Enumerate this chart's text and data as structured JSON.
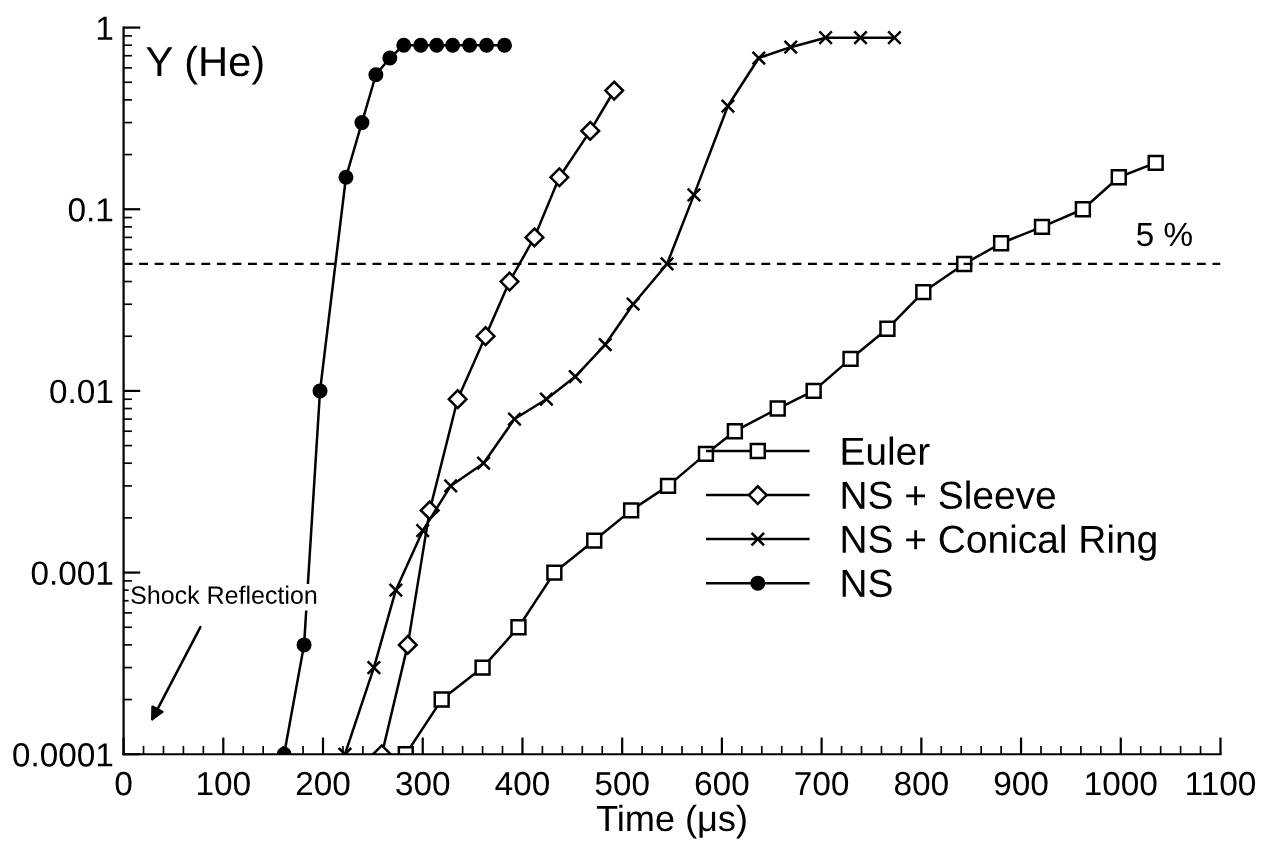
{
  "chart_data": {
    "type": "line",
    "xlabel": "Time (μs)",
    "ylabel": "Y (He)",
    "xlim": [
      0,
      1100
    ],
    "xticks": [
      0,
      100,
      200,
      300,
      400,
      500,
      600,
      700,
      800,
      900,
      1000,
      1100
    ],
    "ylim": [
      0.0001,
      1
    ],
    "yticks": [
      {
        "value": 0.0001,
        "label": "0.0001"
      },
      {
        "value": 0.001,
        "label": "0.001"
      },
      {
        "value": 0.01,
        "label": "0.01"
      },
      {
        "value": 0.1,
        "label": "0.1"
      },
      {
        "value": 1,
        "label": "1"
      }
    ],
    "log": "y",
    "grid": false,
    "legend": "bottom right",
    "ref_lines": [
      {
        "axis": "y",
        "value": 0.05,
        "label": "5 %",
        "line_style": "dashed",
        "color": "#000000"
      }
    ],
    "annotations": [
      "Shock Reflection"
    ],
    "series": [
      {
        "name": "Euler",
        "color": "#000000",
        "marker": "square",
        "x": [
          283,
          319,
          360,
          396,
          432,
          472,
          509,
          546,
          584,
          613,
          656,
          692,
          729,
          766,
          802,
          843,
          880,
          921,
          962,
          998,
          1035
        ],
        "values": [
          0.0001,
          0.0002,
          0.0003,
          0.0005,
          0.001,
          0.0015,
          0.0022,
          0.003,
          0.0045,
          0.006,
          0.008,
          0.01,
          0.015,
          0.022,
          0.035,
          0.05,
          0.065,
          0.08,
          0.1,
          0.15,
          0.18
        ]
      },
      {
        "name": "NS + Sleeve",
        "color": "#000000",
        "marker": "diamond",
        "x": [
          259,
          285,
          307,
          335,
          363,
          387,
          412,
          437,
          468,
          492
        ],
        "values": [
          0.0001,
          0.0004,
          0.0022,
          0.009,
          0.02,
          0.04,
          0.07,
          0.15,
          0.27,
          0.45
        ]
      },
      {
        "name": "NS + Conical Ring",
        "color": "#000000",
        "marker": "cross",
        "x": [
          222,
          251,
          273,
          300,
          328,
          361,
          392,
          424,
          453,
          483,
          511,
          545,
          572,
          606,
          637,
          669,
          704,
          739,
          773
        ],
        "values": [
          0.0001,
          0.0003,
          0.0008,
          0.0017,
          0.003,
          0.004,
          0.007,
          0.009,
          0.012,
          0.018,
          0.03,
          0.05,
          0.12,
          0.37,
          0.68,
          0.78,
          0.88,
          0.88,
          0.88
        ]
      },
      {
        "name": "NS",
        "color": "#000000",
        "marker": "circle",
        "x": [
          161,
          181,
          197,
          223,
          239,
          253,
          267,
          281,
          298,
          314,
          330,
          347,
          364,
          382
        ],
        "values": [
          0.0001,
          0.0004,
          0.01,
          0.15,
          0.3,
          0.55,
          0.68,
          0.8,
          0.8,
          0.8,
          0.8,
          0.8,
          0.8,
          0.8
        ]
      }
    ]
  }
}
